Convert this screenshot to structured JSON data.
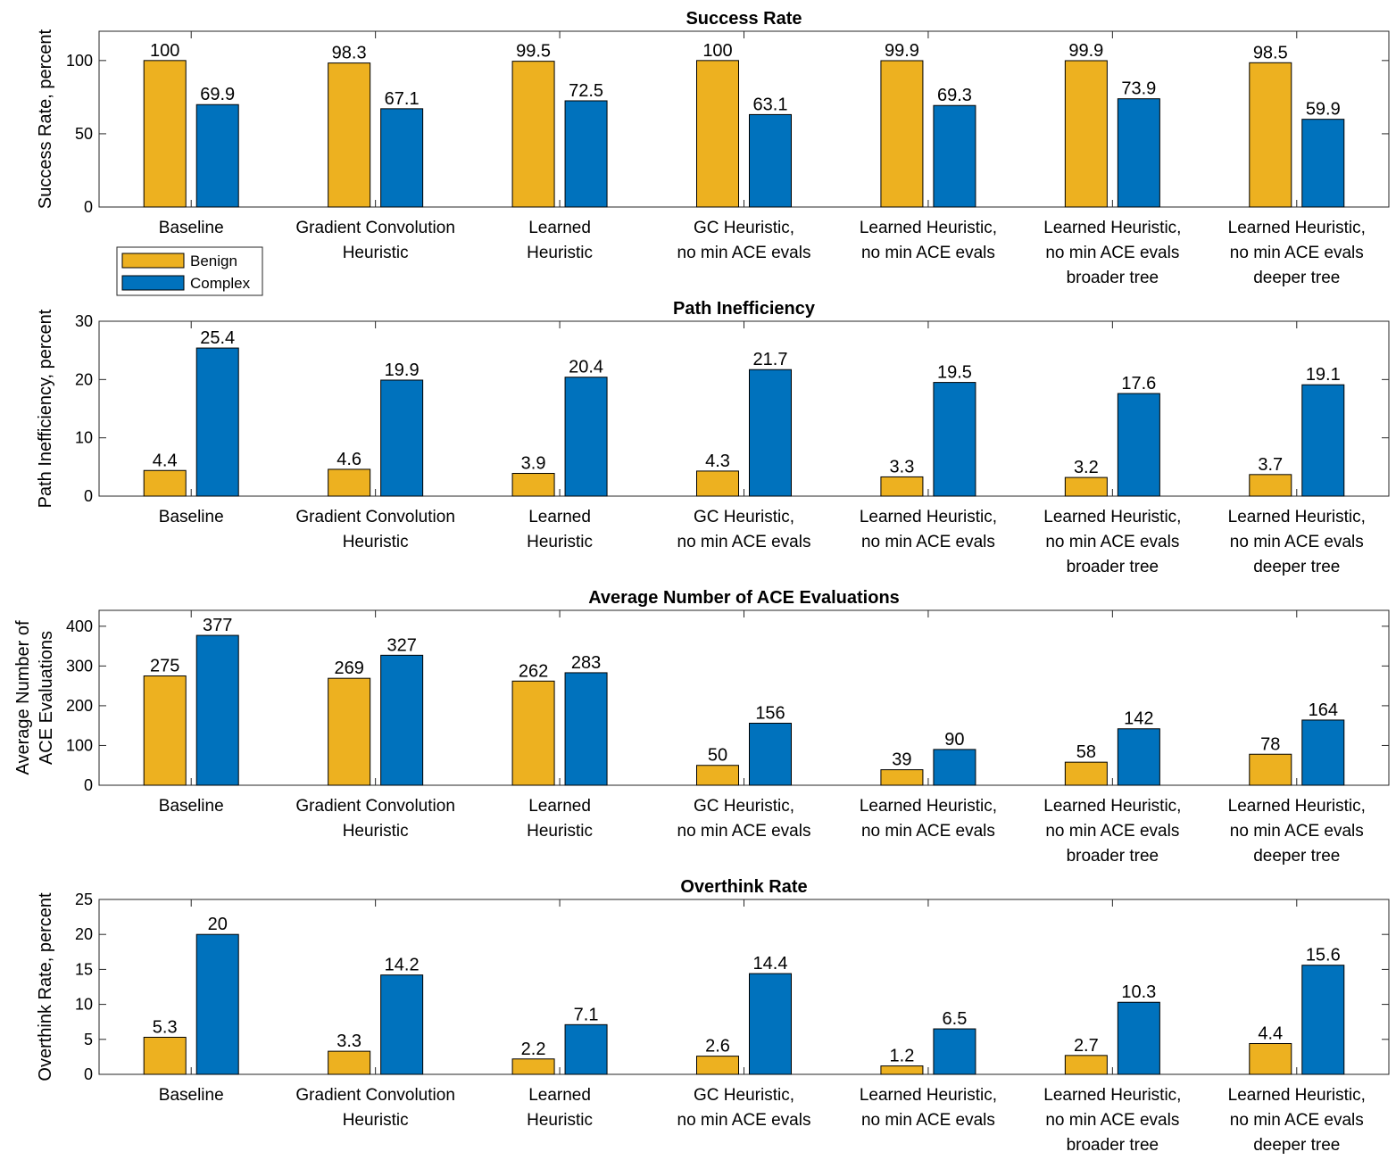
{
  "colors": {
    "benign": "#EDB120",
    "complex": "#0072BD"
  },
  "legend": {
    "items": [
      "Benign",
      "Complex"
    ]
  },
  "categories": [
    [
      "Baseline"
    ],
    [
      "Gradient Convolution",
      "Heuristic"
    ],
    [
      "Learned",
      "Heuristic"
    ],
    [
      "GC Heuristic,",
      "no min ACE evals"
    ],
    [
      "Learned Heuristic,",
      "no min ACE evals"
    ],
    [
      "Learned Heuristic,",
      "no min ACE evals",
      "broader tree"
    ],
    [
      "Learned Heuristic,",
      "no min ACE evals",
      "deeper tree"
    ]
  ],
  "chart_data": [
    {
      "type": "bar",
      "title": "Success Rate",
      "ylabel": [
        "Success Rate, percent"
      ],
      "ylim": [
        0,
        120
      ],
      "yticks": [
        0,
        50,
        100
      ],
      "series": [
        {
          "name": "Benign",
          "values": [
            100,
            98.3,
            99.5,
            100,
            99.9,
            99.9,
            98.5
          ]
        },
        {
          "name": "Complex",
          "values": [
            69.9,
            67.1,
            72.5,
            63.1,
            69.3,
            73.9,
            59.9
          ]
        }
      ]
    },
    {
      "type": "bar",
      "title": "Path Inefficiency",
      "ylabel": [
        "Path Inefficiency, percent"
      ],
      "ylim": [
        0,
        30
      ],
      "yticks": [
        0,
        10,
        20,
        30
      ],
      "series": [
        {
          "name": "Benign",
          "values": [
            4.4,
            4.6,
            3.9,
            4.3,
            3.3,
            3.2,
            3.7
          ]
        },
        {
          "name": "Complex",
          "values": [
            25.4,
            19.9,
            20.4,
            21.7,
            19.5,
            17.6,
            19.1
          ]
        }
      ]
    },
    {
      "type": "bar",
      "title": "Average Number of ACE Evaluations",
      "ylabel": [
        "Average Number of",
        "ACE Evaluations"
      ],
      "ylim": [
        0,
        440
      ],
      "yticks": [
        0,
        100,
        200,
        300,
        400
      ],
      "series": [
        {
          "name": "Benign",
          "values": [
            275,
            269,
            262,
            50,
            39,
            58,
            78
          ]
        },
        {
          "name": "Complex",
          "values": [
            377,
            327,
            283,
            156,
            90,
            142,
            164
          ]
        }
      ]
    },
    {
      "type": "bar",
      "title": "Overthink Rate",
      "ylabel": [
        "Overthink Rate, percent"
      ],
      "ylim": [
        0,
        25
      ],
      "yticks": [
        0,
        5,
        10,
        15,
        20,
        25
      ],
      "series": [
        {
          "name": "Benign",
          "values": [
            5.3,
            3.3,
            2.2,
            2.6,
            1.2,
            2.7,
            4.4
          ]
        },
        {
          "name": "Complex",
          "values": [
            20,
            14.2,
            7.1,
            14.4,
            6.5,
            10.3,
            15.6
          ]
        }
      ]
    }
  ]
}
